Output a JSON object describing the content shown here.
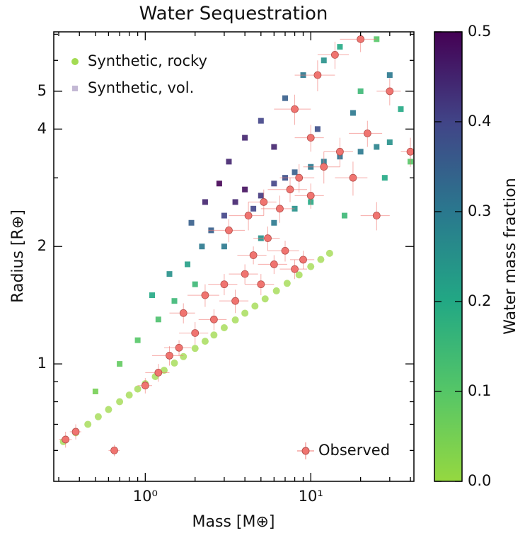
{
  "chart_data": {
    "type": "scatter",
    "title": "Water Sequestration",
    "x_label": "Mass [M⊕]",
    "y_label": "Radius [R⊕]",
    "xscale": "log",
    "yscale": "log",
    "xlim": [
      0.28,
      42
    ],
    "ylim": [
      0.5,
      7.1
    ],
    "xticks": [
      {
        "value": 1,
        "label": "10⁰"
      },
      {
        "value": 10,
        "label": "10¹"
      }
    ],
    "xminorticks": [
      0.3,
      0.4,
      0.5,
      0.6,
      0.7,
      0.8,
      0.9,
      2,
      3,
      4,
      5,
      6,
      7,
      8,
      9,
      20,
      30,
      40
    ],
    "yticks": [
      1,
      2,
      4,
      5
    ],
    "yminorticks": [
      0.6,
      0.7,
      0.8,
      0.9,
      3,
      6,
      7
    ],
    "series": [
      {
        "name": "Synthetic, rocky",
        "marker": "circle",
        "color": "#a3db52",
        "legend": "upper left",
        "x": [
          0.32,
          0.38,
          0.45,
          0.52,
          0.6,
          0.7,
          0.8,
          0.9,
          1.0,
          1.15,
          1.3,
          1.5,
          1.7,
          2.0,
          2.3,
          2.6,
          3.0,
          3.5,
          4.0,
          4.6,
          5.3,
          6.2,
          7.2,
          8.5,
          10,
          11.5,
          13
        ],
        "values": [
          0.632,
          0.666,
          0.7,
          0.732,
          0.764,
          0.8,
          0.832,
          0.862,
          0.89,
          0.928,
          0.963,
          1.005,
          1.044,
          1.096,
          1.143,
          1.186,
          1.238,
          1.296,
          1.349,
          1.407,
          1.468,
          1.539,
          1.609,
          1.691,
          1.776,
          1.852,
          1.921
        ]
      },
      {
        "name": "Synthetic, vol.",
        "marker": "square",
        "color": "#c3b8d4",
        "legend": "upper left",
        "x": [
          0.5,
          0.7,
          0.9,
          1.2,
          1.5,
          1.1,
          1.4,
          1.8,
          2.2,
          2.5,
          3,
          3.5,
          4,
          2.8,
          3.2,
          4.5,
          5,
          6,
          7,
          8,
          10,
          12,
          15,
          20,
          25,
          30,
          4,
          5,
          7,
          9,
          12,
          15,
          20,
          25,
          30,
          35,
          6,
          8,
          10,
          3,
          2,
          5,
          2.3,
          1.9,
          6,
          11,
          18,
          28,
          40,
          16
        ],
        "values": [
          0.85,
          1.0,
          1.15,
          1.3,
          1.45,
          1.5,
          1.7,
          1.8,
          2.0,
          2.2,
          2.4,
          2.6,
          2.8,
          2.9,
          3.3,
          2.5,
          2.7,
          2.9,
          3.0,
          3.1,
          3.2,
          3.3,
          3.4,
          3.5,
          3.6,
          3.7,
          3.8,
          4.2,
          4.8,
          5.5,
          6.0,
          6.5,
          5.0,
          6.8,
          5.5,
          4.5,
          2.3,
          2.5,
          2.6,
          2.0,
          1.6,
          2.1,
          2.6,
          2.3,
          3.6,
          4.0,
          4.4,
          3.0,
          3.3,
          2.4
        ],
        "water_fraction": [
          0.05,
          0.08,
          0.1,
          0.12,
          0.15,
          0.2,
          0.25,
          0.22,
          0.3,
          0.35,
          0.4,
          0.45,
          0.48,
          0.5,
          0.45,
          0.4,
          0.42,
          0.4,
          0.38,
          0.35,
          0.3,
          0.3,
          0.32,
          0.3,
          0.28,
          0.25,
          0.45,
          0.4,
          0.35,
          0.3,
          0.25,
          0.2,
          0.15,
          0.1,
          0.3,
          0.2,
          0.3,
          0.25,
          0.2,
          0.3,
          0.15,
          0.25,
          0.45,
          0.35,
          0.45,
          0.38,
          0.3,
          0.2,
          0.1,
          0.15
        ]
      },
      {
        "name": "Observed",
        "marker": "errorbar",
        "color": "#f07470",
        "legend": "lower right",
        "x": [
          0.33,
          0.38,
          0.65,
          1.0,
          1.2,
          1.4,
          1.6,
          1.7,
          2.0,
          2.3,
          2.6,
          3.0,
          3.5,
          4.0,
          4.5,
          5.0,
          5.5,
          6,
          7,
          8,
          9,
          3.2,
          4.2,
          5.2,
          6.5,
          7.5,
          8.5,
          10,
          12,
          15,
          18,
          22,
          25,
          8,
          11,
          14,
          20,
          30,
          10,
          40
        ],
        "xerr": [
          0.03,
          0.03,
          0.05,
          0.1,
          0.2,
          0.3,
          0.3,
          0.3,
          0.4,
          0.5,
          0.5,
          0.6,
          0.7,
          0.8,
          0.9,
          1,
          1,
          1.2,
          1.5,
          1.5,
          1.5,
          0.8,
          1,
          1,
          1.5,
          2,
          2,
          2,
          3,
          3,
          4,
          5,
          5,
          2,
          3,
          3,
          5,
          5,
          2,
          5
        ],
        "values": [
          0.64,
          0.67,
          0.6,
          0.88,
          0.95,
          1.05,
          1.1,
          1.35,
          1.2,
          1.5,
          1.3,
          1.6,
          1.45,
          1.7,
          1.9,
          1.6,
          2.1,
          1.8,
          1.95,
          1.75,
          1.85,
          2.2,
          2.4,
          2.6,
          2.5,
          2.8,
          3.0,
          2.7,
          3.2,
          3.5,
          3.0,
          3.9,
          2.4,
          4.5,
          5.5,
          6.2,
          6.8,
          5.0,
          3.8,
          3.5
        ],
        "yerr": [
          0.03,
          0.03,
          0.02,
          0.04,
          0.05,
          0.06,
          0.05,
          0.08,
          0.08,
          0.1,
          0.08,
          0.1,
          0.1,
          0.1,
          0.1,
          0.1,
          0.15,
          0.1,
          0.12,
          0.1,
          0.1,
          0.15,
          0.2,
          0.2,
          0.2,
          0.2,
          0.25,
          0.2,
          0.3,
          0.3,
          0.3,
          0.3,
          0.2,
          0.4,
          0.5,
          0.5,
          0.5,
          0.4,
          0.3,
          0.3
        ]
      }
    ],
    "colorbar": {
      "label": "Water mass fraction",
      "lim": [
        0,
        0.5
      ],
      "ticks": [
        {
          "value": 0,
          "label": "0.0"
        },
        0.1,
        0.2,
        0.3,
        0.4,
        0.5
      ],
      "colors": [
        "#95d840",
        "#55c667",
        "#22a884",
        "#2a788e",
        "#414487",
        "#440154"
      ]
    }
  }
}
